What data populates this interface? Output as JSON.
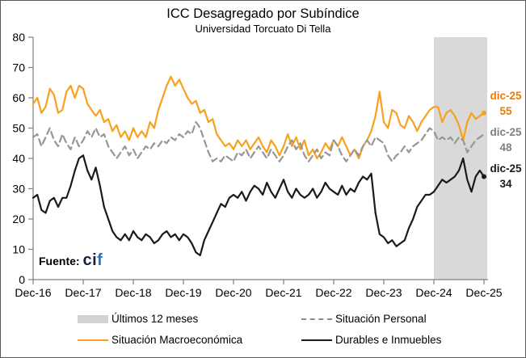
{
  "title": "ICC Desagregado por Subíndice",
  "subtitle": "Universidad Torcuato Di Tella",
  "source": {
    "label": "Fuente:",
    "logo_part1": "ci",
    "logo_part2": "f"
  },
  "annotations": {
    "macro": {
      "date": "dic-25",
      "value": "55"
    },
    "personal": {
      "date": "dic-25",
      "value": "48"
    },
    "durables": {
      "date": "dic-25",
      "value": "34"
    }
  },
  "legend": {
    "band": "Últimos 12 meses",
    "personal": "Situación Personal",
    "macro": "Situación Macroeconómica",
    "durables": "Durables e Inmuebles"
  },
  "colors": {
    "macro_line": "#f8a11e",
    "macro_label": "#e87c09",
    "personal_line": "#969696",
    "personal_label": "#7f7f7f",
    "durables_line": "#1a1a1a",
    "band": "#d9d9d9",
    "axis": "#808080",
    "cif_blue": "#2e74b5"
  },
  "chart_data": {
    "type": "line",
    "title": "ICC Desagregado por Subíndice",
    "subtitle": "Universidad Torcuato Di Tella",
    "x_labels": [
      "Dec-16",
      "Dec-17",
      "Dec-18",
      "Dec-19",
      "Dec-20",
      "Dec-21",
      "Dec-22",
      "Dec-23",
      "Dec-24",
      "Dec-25"
    ],
    "x_frequency": "monthly",
    "ylim": [
      0,
      80
    ],
    "yticks": [
      0,
      10,
      20,
      30,
      40,
      50,
      60,
      70,
      80
    ],
    "grid": false,
    "legend_position": "bottom",
    "highlight_band": {
      "label": "Últimos 12 meses",
      "from_month_index": 96,
      "to_month_index": 108,
      "color": "#d9d9d9"
    },
    "series": [
      {
        "id": "macro",
        "name": "Situación Macroeconómica",
        "color": "#f8a11e",
        "style": "solid",
        "end_marker": true,
        "last_label": {
          "date": "dic-25",
          "value": 55
        },
        "values": [
          58,
          60,
          55,
          57,
          63,
          61,
          55,
          56,
          62,
          64,
          60,
          64,
          63,
          58,
          56,
          54,
          56,
          52,
          53,
          49,
          51,
          47,
          49,
          46,
          50,
          47,
          49,
          47,
          52,
          50,
          56,
          60,
          64,
          67,
          64,
          66,
          63,
          60,
          58,
          59,
          55,
          56,
          52,
          53,
          48,
          46,
          44,
          45,
          43,
          46,
          44,
          46,
          43,
          45,
          47,
          44,
          42,
          46,
          44,
          41,
          44,
          48,
          44,
          47,
          43,
          46,
          41,
          43,
          40,
          42,
          45,
          43,
          46,
          44,
          47,
          44,
          41,
          43,
          40,
          44,
          46,
          49,
          54,
          62,
          52,
          50,
          56,
          55,
          51,
          50,
          54,
          52,
          49,
          52,
          54,
          56,
          57,
          57,
          52,
          55,
          56,
          54,
          51,
          46,
          52,
          55,
          53,
          54,
          55
        ]
      },
      {
        "id": "personal",
        "name": "Situación Personal",
        "color": "#969696",
        "style": "dashed",
        "end_marker": false,
        "last_label": {
          "date": "dic-25",
          "value": 48
        },
        "values": [
          47,
          48,
          44,
          47,
          50,
          46,
          44,
          48,
          45,
          43,
          47,
          44,
          46,
          49,
          47,
          50,
          47,
          48,
          44,
          42,
          40,
          42,
          44,
          41,
          43,
          40,
          42,
          44,
          43,
          45,
          44,
          46,
          45,
          47,
          46,
          48,
          47,
          49,
          48,
          52,
          50,
          46,
          42,
          39,
          40,
          39,
          41,
          40,
          39,
          42,
          41,
          43,
          40,
          42,
          44,
          42,
          40,
          43,
          41,
          39,
          41,
          44,
          46,
          43,
          45,
          41,
          39,
          41,
          43,
          40,
          42,
          41,
          46,
          44,
          41,
          39,
          41,
          43,
          41,
          44,
          46,
          44,
          47,
          46,
          45,
          41,
          39,
          41,
          42,
          44,
          42,
          44,
          45,
          46,
          48,
          50,
          49,
          46,
          47,
          46,
          47,
          45,
          47,
          46,
          42,
          44,
          46,
          47,
          48
        ]
      },
      {
        "id": "durables",
        "name": "Durables e Inmuebles",
        "color": "#1a1a1a",
        "style": "solid",
        "end_marker": true,
        "last_label": {
          "date": "dic-25",
          "value": 34
        },
        "values": [
          27,
          28,
          23,
          22,
          26,
          27,
          24,
          27,
          27,
          31,
          36,
          40,
          41,
          36,
          33,
          37,
          31,
          24,
          20,
          16,
          14,
          13,
          15,
          13,
          16,
          14,
          13,
          15,
          14,
          12,
          13,
          15,
          16,
          14,
          15,
          13,
          15,
          14,
          12,
          9,
          8,
          13,
          16,
          19,
          22,
          25,
          24,
          27,
          28,
          27,
          29,
          26,
          29,
          31,
          30,
          28,
          32,
          29,
          27,
          30,
          33,
          29,
          27,
          30,
          28,
          27,
          28,
          30,
          27,
          29,
          32,
          30,
          29,
          28,
          31,
          28,
          30,
          29,
          32,
          34,
          33,
          35,
          22,
          15,
          14,
          12,
          13,
          11,
          12,
          13,
          17,
          20,
          24,
          26,
          28,
          28,
          29,
          31,
          33,
          32,
          33,
          34,
          36,
          40,
          33,
          29,
          34,
          36,
          34
        ]
      }
    ]
  }
}
